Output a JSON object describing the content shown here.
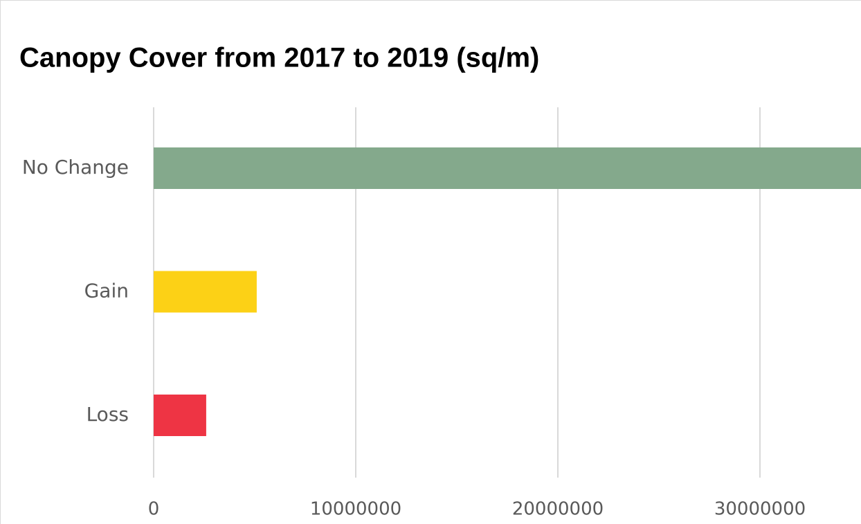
{
  "chart_data": {
    "type": "barh",
    "title": "Canopy Cover from 2017 to 2019 (sq/m)",
    "categories": [
      "No Change",
      "Gain",
      "Loss"
    ],
    "values": [
      35000000,
      5100000,
      2600000
    ],
    "colors": [
      "#84a98c",
      "#fcd116",
      "#ee3444"
    ],
    "xlim": [
      0,
      35000000
    ],
    "xticks": [
      0,
      10000000,
      20000000,
      30000000
    ],
    "grid": true
  }
}
